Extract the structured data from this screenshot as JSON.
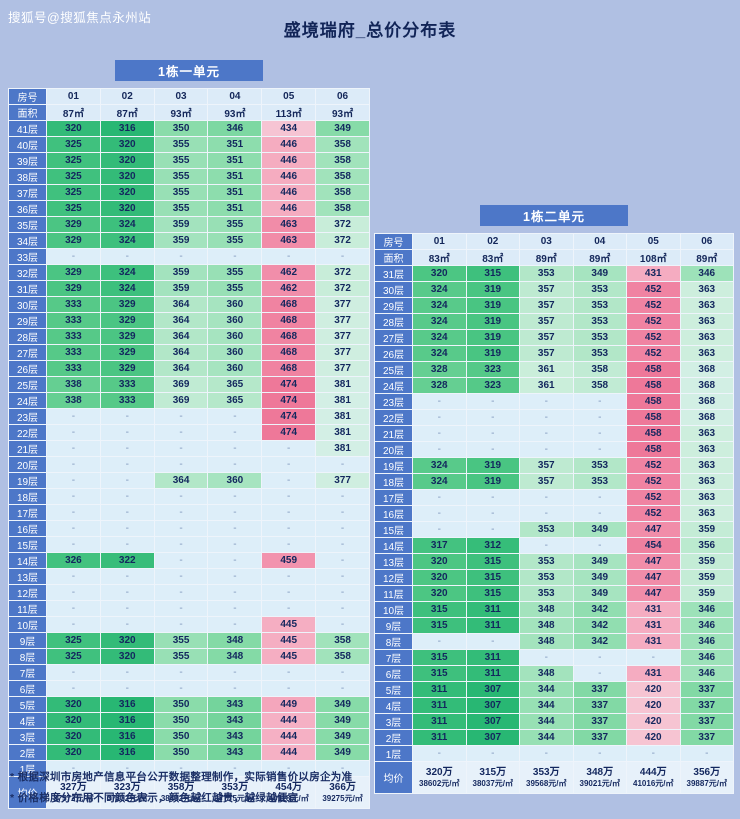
{
  "page": {
    "watermark": "搜狐号@搜狐焦点永州站",
    "title": "盛境瑞府_总价分布表",
    "footnotes": [
      "* 根据深圳市房地产信息平台公开数据整理制作，实际销售价以房企为准",
      "* 价格梯度分布用不同颜色表示，颜色越红越贵，越绿越便宜"
    ],
    "colors": {
      "background": "#b0c0e3",
      "header_blue": "#4d77c8",
      "title_text": "#112457",
      "cheap_green": "#28b773",
      "expensive_pink": "#ee7899",
      "empty_cell": "#ddeef9"
    }
  },
  "chart_data": [
    {
      "type": "heatmap",
      "title": "1栋一单元",
      "row_header": "房号",
      "area_header": "面积",
      "avg_header": "均价",
      "units": [
        "01",
        "02",
        "03",
        "04",
        "05",
        "06"
      ],
      "areas": [
        "87㎡",
        "87㎡",
        "93㎡",
        "93㎡",
        "113㎡",
        "93㎡"
      ],
      "floors": [
        {
          "floor": "41层",
          "prices": [
            "320",
            "316",
            "350",
            "346",
            "434",
            "349"
          ]
        },
        {
          "floor": "40层",
          "prices": [
            "325",
            "320",
            "355",
            "351",
            "446",
            "358"
          ]
        },
        {
          "floor": "39层",
          "prices": [
            "325",
            "320",
            "355",
            "351",
            "446",
            "358"
          ]
        },
        {
          "floor": "38层",
          "prices": [
            "325",
            "320",
            "355",
            "351",
            "446",
            "358"
          ]
        },
        {
          "floor": "37层",
          "prices": [
            "325",
            "320",
            "355",
            "351",
            "446",
            "358"
          ]
        },
        {
          "floor": "36层",
          "prices": [
            "325",
            "320",
            "355",
            "351",
            "446",
            "358"
          ]
        },
        {
          "floor": "35层",
          "prices": [
            "329",
            "324",
            "359",
            "355",
            "463",
            "372"
          ]
        },
        {
          "floor": "34层",
          "prices": [
            "329",
            "324",
            "359",
            "355",
            "463",
            "372"
          ]
        },
        {
          "floor": "33层",
          "prices": [
            "-",
            "-",
            "-",
            "-",
            "-",
            "-"
          ]
        },
        {
          "floor": "32层",
          "prices": [
            "329",
            "324",
            "359",
            "355",
            "462",
            "372"
          ]
        },
        {
          "floor": "31层",
          "prices": [
            "329",
            "324",
            "359",
            "355",
            "462",
            "372"
          ]
        },
        {
          "floor": "30层",
          "prices": [
            "333",
            "329",
            "364",
            "360",
            "468",
            "377"
          ]
        },
        {
          "floor": "29层",
          "prices": [
            "333",
            "329",
            "364",
            "360",
            "468",
            "377"
          ]
        },
        {
          "floor": "28层",
          "prices": [
            "333",
            "329",
            "364",
            "360",
            "468",
            "377"
          ]
        },
        {
          "floor": "27层",
          "prices": [
            "333",
            "329",
            "364",
            "360",
            "468",
            "377"
          ]
        },
        {
          "floor": "26层",
          "prices": [
            "333",
            "329",
            "364",
            "360",
            "468",
            "377"
          ]
        },
        {
          "floor": "25层",
          "prices": [
            "338",
            "333",
            "369",
            "365",
            "474",
            "381"
          ]
        },
        {
          "floor": "24层",
          "prices": [
            "338",
            "333",
            "369",
            "365",
            "474",
            "381"
          ]
        },
        {
          "floor": "23层",
          "prices": [
            "-",
            "-",
            "-",
            "-",
            "474",
            "381"
          ]
        },
        {
          "floor": "22层",
          "prices": [
            "-",
            "-",
            "-",
            "-",
            "474",
            "381"
          ]
        },
        {
          "floor": "21层",
          "prices": [
            "-",
            "-",
            "-",
            "-",
            "-",
            "381"
          ]
        },
        {
          "floor": "20层",
          "prices": [
            "-",
            "-",
            "-",
            "-",
            "-",
            "-"
          ]
        },
        {
          "floor": "19层",
          "prices": [
            "-",
            "-",
            "364",
            "360",
            "-",
            "377"
          ]
        },
        {
          "floor": "18层",
          "prices": [
            "-",
            "-",
            "-",
            "-",
            "-",
            "-"
          ]
        },
        {
          "floor": "17层",
          "prices": [
            "-",
            "-",
            "-",
            "-",
            "-",
            "-"
          ]
        },
        {
          "floor": "16层",
          "prices": [
            "-",
            "-",
            "-",
            "-",
            "-",
            "-"
          ]
        },
        {
          "floor": "15层",
          "prices": [
            "-",
            "-",
            "-",
            "-",
            "-",
            "-"
          ]
        },
        {
          "floor": "14层",
          "prices": [
            "326",
            "322",
            "-",
            "-",
            "459",
            "-"
          ]
        },
        {
          "floor": "13层",
          "prices": [
            "-",
            "-",
            "-",
            "-",
            "-",
            "-"
          ]
        },
        {
          "floor": "12层",
          "prices": [
            "-",
            "-",
            "-",
            "-",
            "-",
            "-"
          ]
        },
        {
          "floor": "11层",
          "prices": [
            "-",
            "-",
            "-",
            "-",
            "-",
            "-"
          ]
        },
        {
          "floor": "10层",
          "prices": [
            "-",
            "-",
            "-",
            "-",
            "445",
            "-"
          ]
        },
        {
          "floor": "9层",
          "prices": [
            "325",
            "320",
            "355",
            "348",
            "445",
            "358"
          ]
        },
        {
          "floor": "8层",
          "prices": [
            "325",
            "320",
            "355",
            "348",
            "445",
            "358"
          ]
        },
        {
          "floor": "7层",
          "prices": [
            "-",
            "-",
            "-",
            "-",
            "-",
            "-"
          ]
        },
        {
          "floor": "6层",
          "prices": [
            "-",
            "-",
            "-",
            "-",
            "-",
            "-"
          ]
        },
        {
          "floor": "5层",
          "prices": [
            "320",
            "316",
            "350",
            "343",
            "449",
            "349"
          ]
        },
        {
          "floor": "4层",
          "prices": [
            "320",
            "316",
            "350",
            "343",
            "444",
            "349"
          ]
        },
        {
          "floor": "3层",
          "prices": [
            "320",
            "316",
            "350",
            "343",
            "444",
            "349"
          ]
        },
        {
          "floor": "2层",
          "prices": [
            "320",
            "316",
            "350",
            "343",
            "444",
            "349"
          ]
        },
        {
          "floor": "1层",
          "prices": [
            "-",
            "-",
            "-",
            "-",
            "-",
            "-"
          ]
        }
      ],
      "averages": [
        {
          "total": "327万",
          "per_sqm": "37572元/㎡"
        },
        {
          "total": "323万",
          "per_sqm": "37132元/㎡"
        },
        {
          "total": "358万",
          "per_sqm": "38492元/㎡"
        },
        {
          "total": "353万",
          "per_sqm": "37775元/㎡"
        },
        {
          "total": "454万",
          "per_sqm": "40118元/㎡"
        },
        {
          "total": "366万",
          "per_sqm": "39275元/㎡"
        }
      ]
    },
    {
      "type": "heatmap",
      "title": "1栋二单元",
      "row_header": "房号",
      "area_header": "面积",
      "avg_header": "均价",
      "units": [
        "01",
        "02",
        "03",
        "04",
        "05",
        "06"
      ],
      "areas": [
        "83㎡",
        "83㎡",
        "89㎡",
        "89㎡",
        "108㎡",
        "89㎡"
      ],
      "floors": [
        {
          "floor": "31层",
          "prices": [
            "320",
            "315",
            "353",
            "349",
            "431",
            "346"
          ]
        },
        {
          "floor": "30层",
          "prices": [
            "324",
            "319",
            "357",
            "353",
            "452",
            "363"
          ]
        },
        {
          "floor": "29层",
          "prices": [
            "324",
            "319",
            "357",
            "353",
            "452",
            "363"
          ]
        },
        {
          "floor": "28层",
          "prices": [
            "324",
            "319",
            "357",
            "353",
            "452",
            "363"
          ]
        },
        {
          "floor": "27层",
          "prices": [
            "324",
            "319",
            "357",
            "353",
            "452",
            "363"
          ]
        },
        {
          "floor": "26层",
          "prices": [
            "324",
            "319",
            "357",
            "353",
            "452",
            "363"
          ]
        },
        {
          "floor": "25层",
          "prices": [
            "328",
            "323",
            "361",
            "358",
            "458",
            "368"
          ]
        },
        {
          "floor": "24层",
          "prices": [
            "328",
            "323",
            "361",
            "358",
            "458",
            "368"
          ]
        },
        {
          "floor": "23层",
          "prices": [
            "-",
            "-",
            "-",
            "-",
            "458",
            "368"
          ]
        },
        {
          "floor": "22层",
          "prices": [
            "-",
            "-",
            "-",
            "-",
            "458",
            "368"
          ]
        },
        {
          "floor": "21层",
          "prices": [
            "-",
            "-",
            "-",
            "-",
            "458",
            "363"
          ]
        },
        {
          "floor": "20层",
          "prices": [
            "-",
            "-",
            "-",
            "-",
            "458",
            "363"
          ]
        },
        {
          "floor": "19层",
          "prices": [
            "324",
            "319",
            "357",
            "353",
            "452",
            "363"
          ]
        },
        {
          "floor": "18层",
          "prices": [
            "324",
            "319",
            "357",
            "353",
            "452",
            "363"
          ]
        },
        {
          "floor": "17层",
          "prices": [
            "-",
            "-",
            "-",
            "-",
            "452",
            "363"
          ]
        },
        {
          "floor": "16层",
          "prices": [
            "-",
            "-",
            "-",
            "-",
            "452",
            "363"
          ]
        },
        {
          "floor": "15层",
          "prices": [
            "-",
            "-",
            "353",
            "349",
            "447",
            "359"
          ]
        },
        {
          "floor": "14层",
          "prices": [
            "317",
            "312",
            "-",
            "-",
            "454",
            "356"
          ]
        },
        {
          "floor": "13层",
          "prices": [
            "320",
            "315",
            "353",
            "349",
            "447",
            "359"
          ]
        },
        {
          "floor": "12层",
          "prices": [
            "320",
            "315",
            "353",
            "349",
            "447",
            "359"
          ]
        },
        {
          "floor": "11层",
          "prices": [
            "320",
            "315",
            "353",
            "349",
            "447",
            "359"
          ]
        },
        {
          "floor": "10层",
          "prices": [
            "315",
            "311",
            "348",
            "342",
            "431",
            "346"
          ]
        },
        {
          "floor": "9层",
          "prices": [
            "315",
            "311",
            "348",
            "342",
            "431",
            "346"
          ]
        },
        {
          "floor": "8层",
          "prices": [
            "-",
            "-",
            "348",
            "342",
            "431",
            "346"
          ]
        },
        {
          "floor": "7层",
          "prices": [
            "315",
            "311",
            "-",
            "-",
            "-",
            "346"
          ]
        },
        {
          "floor": "6层",
          "prices": [
            "315",
            "311",
            "348",
            "-",
            "431",
            "346"
          ]
        },
        {
          "floor": "5层",
          "prices": [
            "311",
            "307",
            "344",
            "337",
            "420",
            "337"
          ]
        },
        {
          "floor": "4层",
          "prices": [
            "311",
            "307",
            "344",
            "337",
            "420",
            "337"
          ]
        },
        {
          "floor": "3层",
          "prices": [
            "311",
            "307",
            "344",
            "337",
            "420",
            "337"
          ]
        },
        {
          "floor": "2层",
          "prices": [
            "311",
            "307",
            "344",
            "337",
            "420",
            "337"
          ]
        },
        {
          "floor": "1层",
          "prices": [
            "-",
            "-",
            "-",
            "-",
            "-",
            "-"
          ]
        }
      ],
      "averages": [
        {
          "total": "320万",
          "per_sqm": "38602元/㎡"
        },
        {
          "total": "315万",
          "per_sqm": "38037元/㎡"
        },
        {
          "total": "353万",
          "per_sqm": "39568元/㎡"
        },
        {
          "total": "348万",
          "per_sqm": "39021元/㎡"
        },
        {
          "total": "444万",
          "per_sqm": "41016元/㎡"
        },
        {
          "total": "356万",
          "per_sqm": "39887元/㎡"
        }
      ]
    }
  ]
}
